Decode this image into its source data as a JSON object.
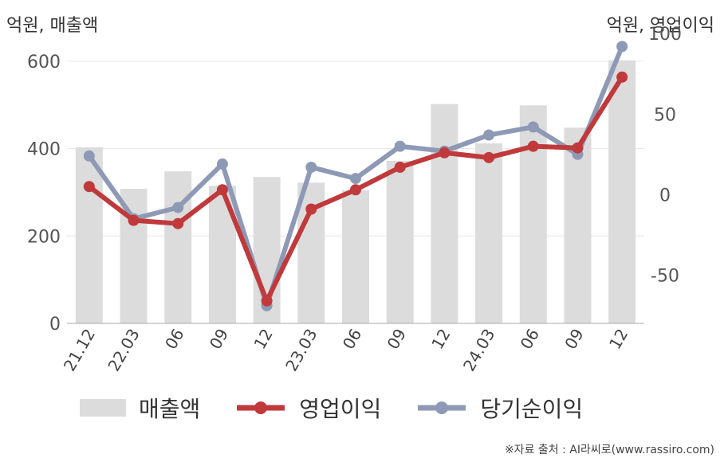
{
  "units": {
    "left": "억원, 매출액",
    "right": "억원, 영업이익"
  },
  "legend": {
    "sales": "매출액",
    "op": "영업이익",
    "net": "당기순이익"
  },
  "source": "※자료 출처 : AI라씨로(www.rassiro.com)",
  "colors": {
    "bar": "#dcdcdc",
    "op": "#c0393b",
    "net": "#8e9ab5",
    "grid": "#e6e6e6",
    "axis": "#aaaaaa"
  },
  "chart_data": {
    "type": "bar",
    "categories": [
      "21.12",
      "22.03",
      "06",
      "09",
      "12",
      "23.03",
      "06",
      "09",
      "12",
      "24.03",
      "06",
      "09",
      "12"
    ],
    "left_axis": {
      "ylim": [
        0,
        700
      ],
      "ticks": [
        0,
        200,
        400,
        600
      ]
    },
    "right_axis": {
      "ylim": [
        -80,
        110
      ],
      "ticks": [
        -50,
        0,
        50,
        100
      ]
    },
    "series": [
      {
        "name": "매출액",
        "type": "bar",
        "axis": "left",
        "values": [
          403,
          308,
          348,
          315,
          335,
          322,
          305,
          372,
          502,
          412,
          499,
          448,
          602
        ]
      },
      {
        "name": "영업이익",
        "type": "line",
        "axis": "right",
        "values": [
          5,
          -16,
          -18,
          3,
          -66,
          -9,
          3,
          17,
          26,
          23,
          30,
          29,
          73
        ]
      },
      {
        "name": "당기순이익",
        "type": "line",
        "axis": "right",
        "values": [
          24,
          -15,
          -8,
          19,
          -69,
          17,
          10,
          30,
          27,
          37,
          42,
          25,
          92
        ]
      }
    ]
  }
}
